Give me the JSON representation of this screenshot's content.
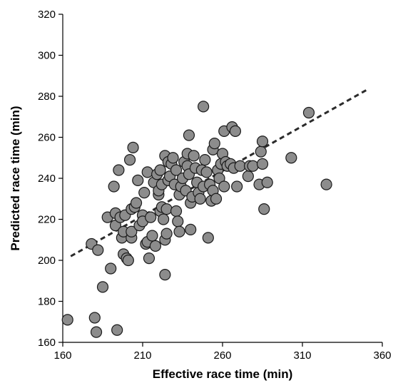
{
  "chart_data": {
    "type": "scatter",
    "xlabel": "Effective race time (min)",
    "ylabel": "Predicted race time (min)",
    "xlim": [
      160,
      360
    ],
    "ylim": [
      160,
      320
    ],
    "xticks": [
      160,
      210,
      260,
      310,
      360
    ],
    "yticks": [
      160,
      180,
      200,
      220,
      240,
      260,
      280,
      300,
      320
    ],
    "grid": false,
    "colors": {
      "point_fill": "#8c8c8c",
      "point_stroke": "#1a1a1a",
      "trend": "#2b2b2b",
      "axis": "#000000"
    },
    "trendline": {
      "style": "dashed",
      "x": [
        165,
        350
      ],
      "y": [
        202,
        283
      ]
    },
    "series": [
      {
        "points": [
          [
            163,
            171
          ],
          [
            178,
            208
          ],
          [
            180,
            172
          ],
          [
            181,
            165
          ],
          [
            182,
            205
          ],
          [
            185,
            187
          ],
          [
            188,
            221
          ],
          [
            190,
            196
          ],
          [
            192,
            236
          ],
          [
            193,
            217
          ],
          [
            193,
            223
          ],
          [
            194,
            166
          ],
          [
            195,
            244
          ],
          [
            196,
            221
          ],
          [
            197,
            211
          ],
          [
            198,
            214
          ],
          [
            198,
            203
          ],
          [
            199,
            222
          ],
          [
            200,
            201
          ],
          [
            201,
            200
          ],
          [
            202,
            249
          ],
          [
            203,
            211
          ],
          [
            203,
            214
          ],
          [
            203,
            225
          ],
          [
            204,
            255
          ],
          [
            205,
            226
          ],
          [
            206,
            228
          ],
          [
            207,
            239
          ],
          [
            208,
            217
          ],
          [
            210,
            222
          ],
          [
            210,
            219
          ],
          [
            211,
            233
          ],
          [
            212,
            208
          ],
          [
            213,
            243
          ],
          [
            213,
            209
          ],
          [
            214,
            201
          ],
          [
            215,
            221
          ],
          [
            216,
            212
          ],
          [
            217,
            238
          ],
          [
            218,
            207
          ],
          [
            219,
            242
          ],
          [
            220,
            232
          ],
          [
            220,
            234
          ],
          [
            221,
            224
          ],
          [
            221,
            244
          ],
          [
            222,
            237
          ],
          [
            222,
            226
          ],
          [
            223,
            220
          ],
          [
            224,
            251
          ],
          [
            224,
            210
          ],
          [
            224,
            193
          ],
          [
            225,
            213
          ],
          [
            225,
            225
          ],
          [
            226,
            239
          ],
          [
            226,
            248
          ],
          [
            227,
            241
          ],
          [
            228,
            247
          ],
          [
            229,
            250
          ],
          [
            230,
            237
          ],
          [
            231,
            244
          ],
          [
            231,
            224
          ],
          [
            232,
            219
          ],
          [
            233,
            214
          ],
          [
            233,
            232
          ],
          [
            234,
            236
          ],
          [
            235,
            240
          ],
          [
            236,
            248
          ],
          [
            237,
            234
          ],
          [
            238,
            246
          ],
          [
            238,
            252
          ],
          [
            239,
            261
          ],
          [
            239,
            242
          ],
          [
            240,
            228
          ],
          [
            240,
            215
          ],
          [
            241,
            231
          ],
          [
            242,
            251
          ],
          [
            243,
            245
          ],
          [
            244,
            238
          ],
          [
            245,
            233
          ],
          [
            246,
            230
          ],
          [
            247,
            244
          ],
          [
            248,
            275
          ],
          [
            248,
            236
          ],
          [
            249,
            249
          ],
          [
            250,
            243
          ],
          [
            251,
            211
          ],
          [
            252,
            237
          ],
          [
            253,
            229
          ],
          [
            254,
            234
          ],
          [
            254,
            254
          ],
          [
            255,
            257
          ],
          [
            256,
            230
          ],
          [
            257,
            244
          ],
          [
            258,
            240
          ],
          [
            259,
            247
          ],
          [
            260,
            252
          ],
          [
            261,
            236
          ],
          [
            261,
            263
          ],
          [
            262,
            248
          ],
          [
            263,
            246
          ],
          [
            265,
            247
          ],
          [
            266,
            265
          ],
          [
            267,
            245
          ],
          [
            268,
            263
          ],
          [
            269,
            236
          ],
          [
            271,
            246
          ],
          [
            276,
            241
          ],
          [
            277,
            246
          ],
          [
            279,
            246
          ],
          [
            283,
            237
          ],
          [
            284,
            253
          ],
          [
            285,
            258
          ],
          [
            285,
            247
          ],
          [
            286,
            225
          ],
          [
            288,
            238
          ],
          [
            303,
            250
          ],
          [
            314,
            272
          ],
          [
            325,
            237
          ]
        ]
      }
    ]
  }
}
